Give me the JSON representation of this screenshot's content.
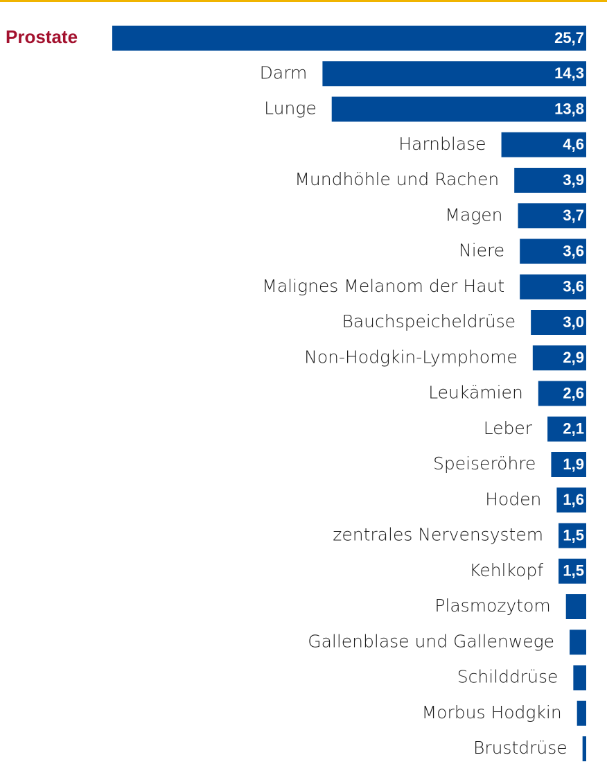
{
  "chart_data": {
    "type": "bar",
    "orientation": "horizontal",
    "categories": [
      "Prostate",
      "Darm",
      "Lunge",
      "Harnblase",
      "Mundhöhle und Rachen",
      "Magen",
      "Niere",
      "Malignes Melanom der Haut",
      "Bauchspeicheldrüse",
      "Non-Hodgkin-Lymphome",
      "Leukämien",
      "Leber",
      "Speiseröhre",
      "Hoden",
      "zentrales Nervensystem",
      "Kehlkopf",
      "Plasmozytom",
      "Gallenblase und Gallenwege",
      "Schilddrüse",
      "Morbus Hodgkin",
      "Brustdrüse"
    ],
    "values": [
      25.7,
      14.3,
      13.8,
      4.6,
      3.9,
      3.7,
      3.6,
      3.6,
      3.0,
      2.9,
      2.6,
      2.1,
      1.9,
      1.6,
      1.5,
      1.5,
      1.1,
      0.9,
      0.7,
      0.5,
      0.2
    ],
    "value_labels": [
      "25,7",
      "14,3",
      "13,8",
      "4,6",
      "3,9",
      "3,7",
      "3,6",
      "3,6",
      "3,0",
      "2,9",
      "2,6",
      "2,1",
      "1,9",
      "1,6",
      "1,5",
      "1,5",
      null,
      null,
      null,
      null,
      null
    ],
    "color": "#004a98",
    "highlight_index": 0,
    "highlight_color": "#a3112e",
    "xlim": [
      0,
      25.7
    ]
  }
}
